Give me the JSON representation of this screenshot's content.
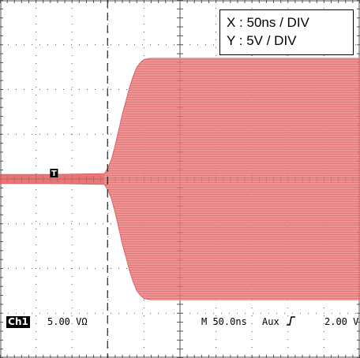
{
  "chart_data": {
    "type": "line",
    "title": "",
    "xlabel": "",
    "ylabel": "",
    "annotation_lines": [
      "X : 50ns / DIV",
      "Y : 5V / DIV"
    ],
    "x_divisions": 10,
    "y_divisions": 8,
    "x_range_ns": [
      -200,
      300
    ],
    "y_range_div": [
      -4,
      4
    ],
    "trigger_marker": "T",
    "trigger_time_ns": -125,
    "series": [
      {
        "color": "#e06060",
        "envelope": {
          "t_ns": [
            -200,
            -125,
            -55,
            -50,
            -45,
            -40,
            -35,
            -30,
            -25,
            -20,
            -15,
            -10,
            -5,
            0,
            10,
            20,
            300
          ],
          "amplitude_div": [
            0.1,
            0.1,
            0.12,
            0.25,
            0.45,
            0.75,
            1.1,
            1.45,
            1.75,
            2.05,
            2.3,
            2.5,
            2.6,
            2.67,
            2.7,
            2.7,
            2.7
          ]
        }
      }
    ],
    "colors": {
      "grid": "#555555",
      "trace": "#e06060",
      "background": "#ffffff"
    },
    "status": {
      "channel_badge": "Ch1",
      "channel_scale": "5.00 VΩ",
      "timebase": "M 50.0ns",
      "trigger_source": "Aux",
      "trigger_icon": "rising-edge-icon",
      "trigger_level": "2.00 V"
    }
  }
}
